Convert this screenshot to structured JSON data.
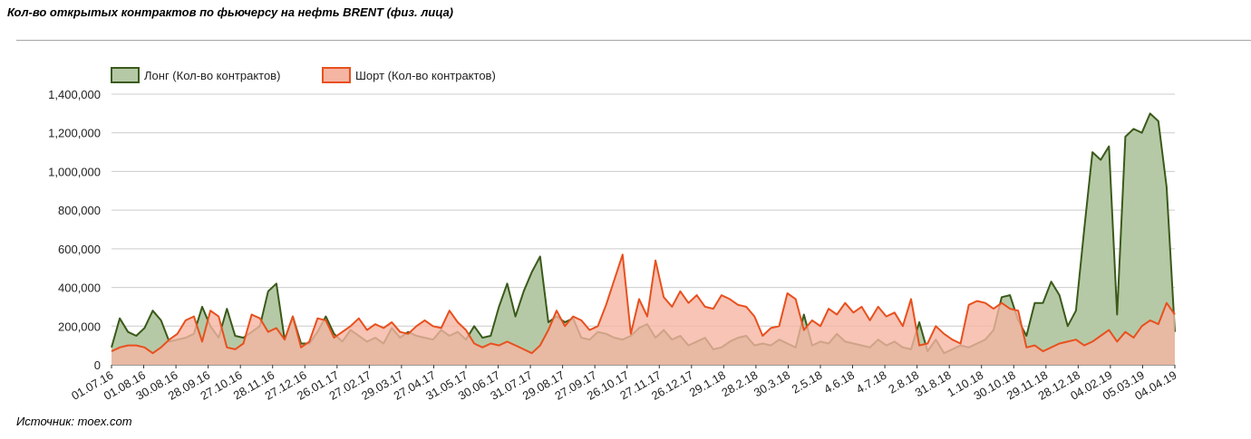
{
  "page": {
    "title": "Кол-во открытых контрактов по фьючерсу на нефть BRENT (физ. лица)",
    "source": "Источник: moex.com"
  },
  "colors": {
    "long_line": "#3a5a1a",
    "long_fill": "#b6c9a6",
    "short_line": "#e8501e",
    "short_fill": "#f5b5a3",
    "grid": "#cccccc"
  },
  "chart_data": {
    "type": "area",
    "title": "Кол-во открытых контрактов по фьючерсу на нефть BRENT (физ. лица)",
    "legend_position": "top-left",
    "grid": true,
    "ylim": [
      0,
      1400000
    ],
    "yticks": [
      "0",
      "200,000",
      "400,000",
      "600,000",
      "800,000",
      "1,000,000",
      "1,200,000",
      "1,400,000"
    ],
    "xticks": [
      "01.07.16",
      "01.08.16",
      "30.08.16",
      "28.09.16",
      "27.10.16",
      "28.11.16",
      "27.12.16",
      "26.01.17",
      "27.02.17",
      "29.03.17",
      "27.04.17",
      "31.05.17",
      "30.06.17",
      "31.07.17",
      "29.08.17",
      "27.09.17",
      "26.10.17",
      "27.11.17",
      "26.12.17",
      "29.1.18",
      "28.2.18",
      "30.3.18",
      "2.5.18",
      "4.6.18",
      "4.7.18",
      "2.8.18",
      "31.8.18",
      "1.10.18",
      "30.10.18",
      "29.11.18",
      "28.12.18",
      "04.02.19",
      "05.03.19",
      "04.04.19"
    ],
    "series": [
      {
        "name": "Лонг (Кол-во контрактов)",
        "values": [
          90000,
          240000,
          170000,
          150000,
          190000,
          280000,
          230000,
          120000,
          130000,
          140000,
          160000,
          300000,
          200000,
          140000,
          290000,
          150000,
          140000,
          170000,
          200000,
          380000,
          420000,
          130000,
          250000,
          110000,
          110000,
          170000,
          250000,
          160000,
          120000,
          180000,
          150000,
          120000,
          140000,
          110000,
          190000,
          140000,
          170000,
          150000,
          140000,
          130000,
          180000,
          150000,
          170000,
          130000,
          200000,
          140000,
          150000,
          300000,
          420000,
          250000,
          380000,
          480000,
          560000,
          220000,
          250000,
          220000,
          240000,
          140000,
          130000,
          170000,
          160000,
          140000,
          130000,
          150000,
          190000,
          210000,
          140000,
          180000,
          130000,
          150000,
          100000,
          120000,
          140000,
          80000,
          90000,
          120000,
          140000,
          150000,
          100000,
          110000,
          100000,
          130000,
          110000,
          90000,
          260000,
          100000,
          120000,
          110000,
          160000,
          120000,
          110000,
          100000,
          90000,
          130000,
          100000,
          120000,
          90000,
          80000,
          220000,
          70000,
          130000,
          60000,
          80000,
          100000,
          90000,
          110000,
          130000,
          180000,
          350000,
          360000,
          230000,
          150000,
          320000,
          320000,
          430000,
          360000,
          200000,
          280000,
          700000,
          1100000,
          1060000,
          1130000,
          260000,
          1180000,
          1220000,
          1200000,
          1300000,
          1260000,
          920000,
          170000
        ]
      },
      {
        "name": "Шорт (Кол-во контрактов)",
        "values": [
          70000,
          90000,
          100000,
          100000,
          90000,
          60000,
          90000,
          130000,
          160000,
          230000,
          250000,
          120000,
          280000,
          250000,
          90000,
          80000,
          110000,
          260000,
          240000,
          170000,
          190000,
          130000,
          250000,
          90000,
          120000,
          240000,
          230000,
          140000,
          170000,
          200000,
          240000,
          180000,
          210000,
          190000,
          220000,
          170000,
          160000,
          200000,
          230000,
          200000,
          190000,
          280000,
          220000,
          180000,
          110000,
          90000,
          110000,
          100000,
          120000,
          100000,
          80000,
          60000,
          100000,
          180000,
          280000,
          200000,
          250000,
          230000,
          180000,
          200000,
          310000,
          440000,
          570000,
          160000,
          340000,
          250000,
          540000,
          350000,
          300000,
          380000,
          320000,
          360000,
          300000,
          290000,
          360000,
          340000,
          310000,
          300000,
          250000,
          150000,
          190000,
          200000,
          370000,
          340000,
          180000,
          230000,
          200000,
          290000,
          260000,
          320000,
          270000,
          300000,
          230000,
          300000,
          250000,
          270000,
          200000,
          340000,
          100000,
          110000,
          200000,
          160000,
          130000,
          110000,
          310000,
          330000,
          320000,
          290000,
          320000,
          290000,
          280000,
          90000,
          100000,
          70000,
          90000,
          110000,
          120000,
          130000,
          100000,
          120000,
          150000,
          180000,
          120000,
          170000,
          140000,
          200000,
          230000,
          210000,
          320000,
          260000
        ]
      }
    ]
  }
}
